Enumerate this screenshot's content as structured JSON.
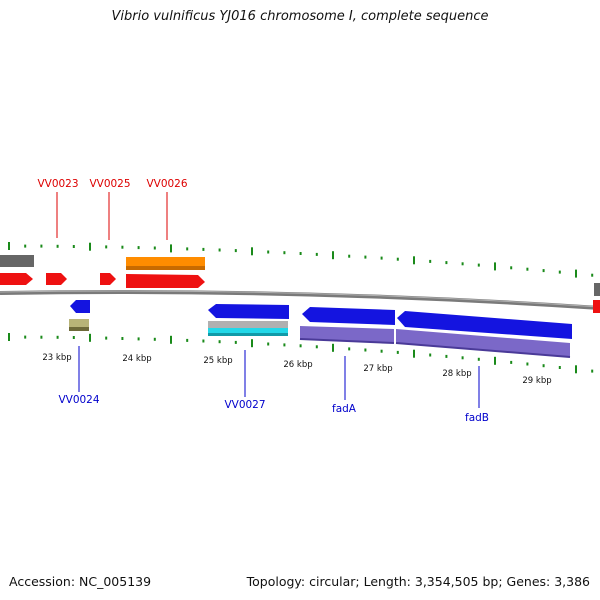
{
  "title": "Vibrio vulnificus YJ016 chromosome I, complete sequence",
  "footer": {
    "accession": "Accession: NC_005139",
    "summary": "Topology: circular; Length: 3,354,505 bp; Genes: 3,386"
  },
  "scale_labels": [
    "23 kbp",
    "24 kbp",
    "25 kbp",
    "26 kbp",
    "27 kbp",
    "28 kbp",
    "29 kbp"
  ],
  "gene_labels": {
    "top": [
      "VV0023",
      "VV0025",
      "VV0026"
    ],
    "bottom": [
      "VV0024",
      "VV0027",
      "fadA",
      "fadB"
    ]
  },
  "colors": {
    "forward_label": "#dd0000",
    "reverse_label": "#0000cc",
    "tick_green": "#1a8a1a",
    "backbone": "#7a7a7a",
    "cds_red": "#ee1111",
    "cds_blue": "#1414e0",
    "gene_orange": "#ff8c00",
    "gene_purple": "#7b68c8",
    "gene_gray": "#666666",
    "gene_cyan": "#22d8e8",
    "gene_khaki": "#b8b478"
  }
}
